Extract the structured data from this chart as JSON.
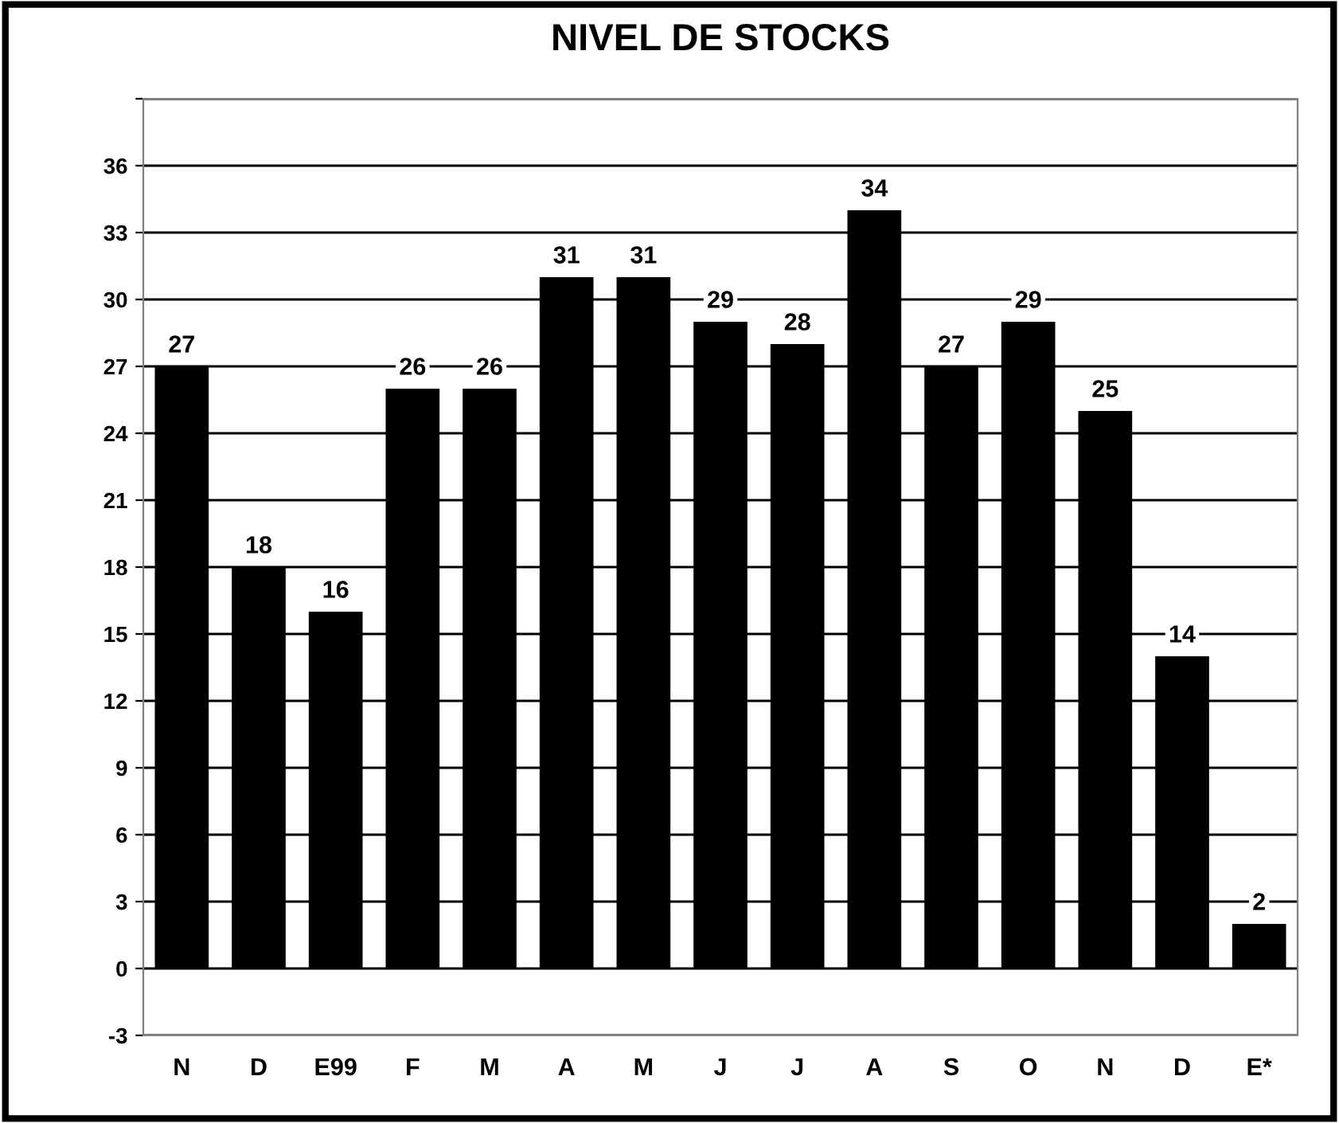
{
  "chart_data": {
    "type": "bar",
    "title": "NIVEL DE STOCKS",
    "categories": [
      "N",
      "D",
      "E99",
      "F",
      "M",
      "A",
      "M",
      "J",
      "J",
      "A",
      "S",
      "O",
      "N",
      "D",
      "E*"
    ],
    "values": [
      27,
      18,
      16,
      26,
      26,
      31,
      31,
      29,
      28,
      34,
      27,
      29,
      25,
      14,
      2
    ],
    "color": "#000000",
    "ylim": [
      -3,
      39
    ],
    "yticks": [
      -3,
      0,
      3,
      6,
      9,
      12,
      15,
      18,
      21,
      24,
      27,
      30,
      33,
      36,
      {
        "value": 39,
        "label": null
      }
    ],
    "grid": "y",
    "data_labels": true
  }
}
